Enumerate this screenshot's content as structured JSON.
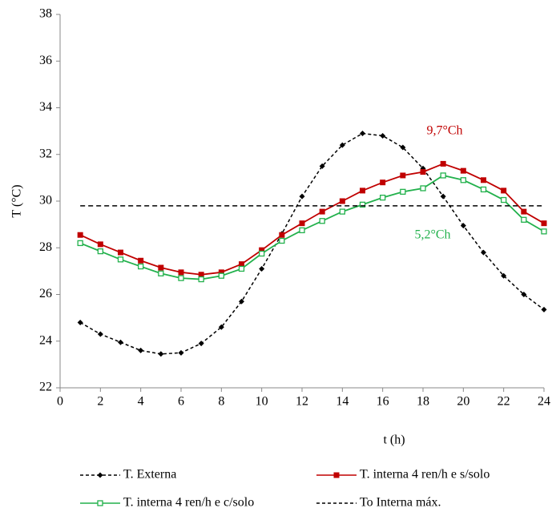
{
  "chart_data": {
    "type": "line",
    "xlabel": "t (h)",
    "ylabel": "T (°C)",
    "x": [
      1,
      2,
      3,
      4,
      5,
      6,
      7,
      8,
      9,
      10,
      11,
      12,
      13,
      14,
      15,
      16,
      17,
      18,
      19,
      20,
      21,
      22,
      23,
      24
    ],
    "xlim": [
      0,
      24
    ],
    "xticks": [
      0,
      2,
      4,
      6,
      8,
      10,
      12,
      14,
      16,
      18,
      20,
      22,
      24
    ],
    "ylim": [
      22,
      38
    ],
    "yticks": [
      22,
      24,
      26,
      28,
      30,
      32,
      34,
      36,
      38
    ],
    "grid": false,
    "series": [
      {
        "name": "T. Externa",
        "color": "#000000",
        "dash": true,
        "marker": "diamond",
        "values": [
          24.8,
          24.3,
          23.95,
          23.6,
          23.45,
          23.5,
          23.9,
          24.6,
          25.7,
          27.1,
          28.6,
          30.2,
          31.5,
          32.4,
          32.9,
          32.8,
          32.3,
          31.4,
          30.2,
          28.95,
          27.8,
          26.8,
          26.0,
          25.35
        ]
      },
      {
        "name": "T. interna 4 ren/h e s/solo",
        "color": "#c00000",
        "dash": false,
        "marker": "square",
        "values": [
          28.55,
          28.15,
          27.8,
          27.45,
          27.15,
          26.95,
          26.85,
          26.95,
          27.3,
          27.9,
          28.55,
          29.05,
          29.55,
          30.0,
          30.45,
          30.8,
          31.1,
          31.25,
          31.6,
          31.3,
          30.9,
          30.45,
          29.55,
          29.05
        ]
      },
      {
        "name": "T. interna 4 ren/h e c/solo",
        "color": "#22b14c",
        "dash": false,
        "marker": "hollow-square",
        "values": [
          28.2,
          27.85,
          27.5,
          27.2,
          26.9,
          26.7,
          26.65,
          26.8,
          27.1,
          27.75,
          28.3,
          28.75,
          29.15,
          29.55,
          29.85,
          30.15,
          30.4,
          30.55,
          31.1,
          30.9,
          30.5,
          30.05,
          29.2,
          28.7
        ]
      },
      {
        "name": "To Interna máx.",
        "color": "#000000",
        "dash": true,
        "marker": "none",
        "x": [
          1,
          24
        ],
        "values": [
          29.8,
          29.8
        ]
      }
    ],
    "annotations": [
      {
        "text": "9,7°Ch",
        "color": "#c00000"
      },
      {
        "text": "5,2°Ch",
        "color": "#22b14c"
      }
    ]
  }
}
